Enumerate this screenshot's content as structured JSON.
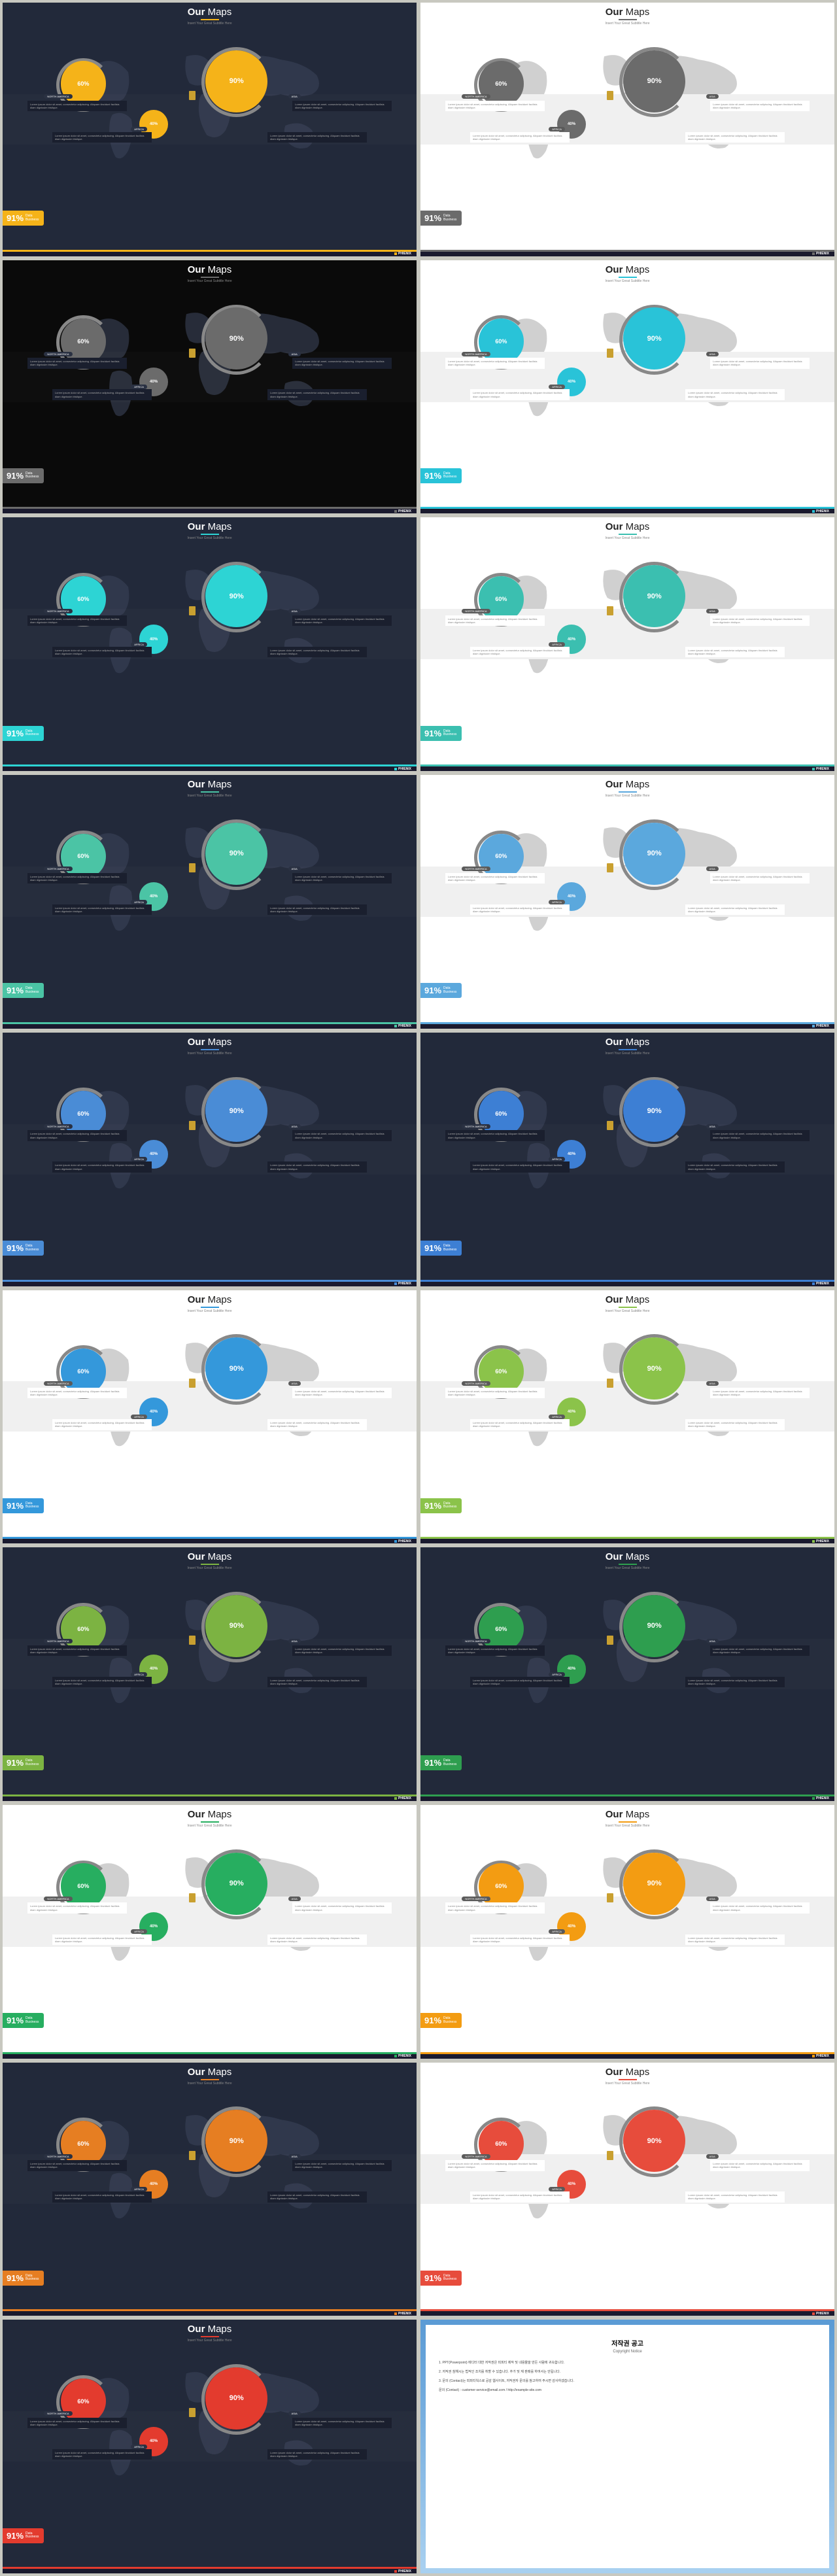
{
  "title_bold": "Our",
  "title_light": " Maps",
  "subtitle": "Insert Your Great Subtitle Here",
  "lorem": "Lorem ipsum dolor sit amet, consectetur adipiscing. Aliquam tincidunt facilisis diam dignissim tristique.",
  "pct_big": "90%",
  "pct_med": "60%",
  "pct_sm": "40%",
  "pill_na": "NORTH AMERICA",
  "pill_asia": "ASIA",
  "pill_africa": "AFRICA",
  "badge_pct": "91%",
  "badge_l1": "Data",
  "badge_l2": "Business",
  "brand": "PHIENIX",
  "slides": [
    {
      "bg": "dark",
      "accent": "#f5b319"
    },
    {
      "bg": "light",
      "accent": "#6b6b6b"
    },
    {
      "bg": "black",
      "accent": "#6b6b6b"
    },
    {
      "bg": "light",
      "accent": "#29c3d8"
    },
    {
      "bg": "dark",
      "accent": "#2dd4d4"
    },
    {
      "bg": "light",
      "accent": "#3bbfb0"
    },
    {
      "bg": "dark",
      "accent": "#4bc4a5"
    },
    {
      "bg": "light",
      "accent": "#5ba8dd"
    },
    {
      "bg": "dark",
      "accent": "#4a8cd6"
    },
    {
      "bg": "dark",
      "accent": "#3d7fd4"
    },
    {
      "bg": "light",
      "accent": "#3498db"
    },
    {
      "bg": "light",
      "accent": "#8bc34a"
    },
    {
      "bg": "dark",
      "accent": "#7cb342"
    },
    {
      "bg": "dark",
      "accent": "#2e9e4f"
    },
    {
      "bg": "light",
      "accent": "#27ae60"
    },
    {
      "bg": "light",
      "accent": "#f39c12"
    },
    {
      "bg": "dark",
      "accent": "#e67e22"
    },
    {
      "bg": "light",
      "accent": "#e74c3c"
    },
    {
      "bg": "dark",
      "accent": "#e33b2e"
    }
  ],
  "copyright": {
    "title": "저작권 공고",
    "sub": "Copyright Notice",
    "p1": "1. PPT(Powerpoint) 에디터 대한 저작권은 피피티 제작 및 내용물을 만든 사람에 귀속합니다.",
    "p2": "2. 저작권 침해시는 법적인 조치를 취할 수 있습니다. 추가 및 재 판매를 하여서는 안됩니다.",
    "p3": "3. 문의 (Contact)는 피피티웍스로 공감 웹사이트, 저작권자 문의를 참고하여 주시면 감사하겠습니다.",
    "p4": "문의 (Contact) : customer-service@email.com / http://example-site.com"
  }
}
